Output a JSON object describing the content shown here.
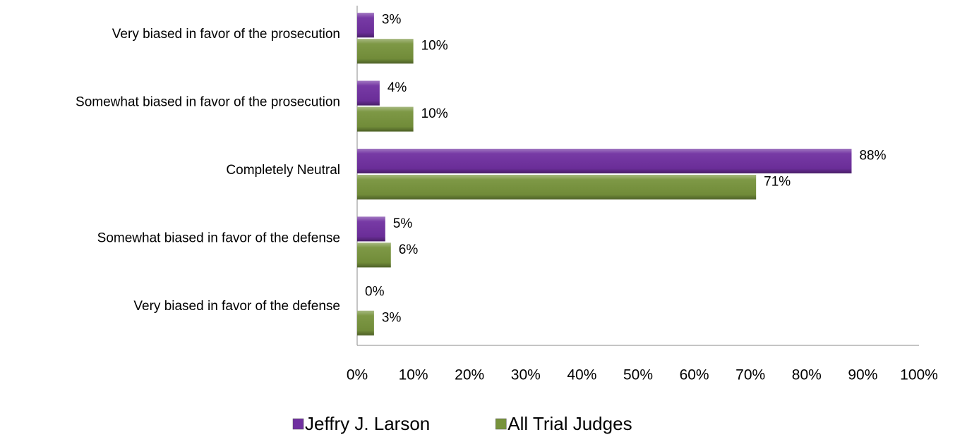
{
  "chart_data": {
    "type": "bar",
    "orientation": "horizontal",
    "categories": [
      "Very biased in favor of the prosecution",
      "Somewhat biased in favor of the prosecution",
      "Completely Neutral",
      "Somewhat biased in favor of the defense",
      "Very biased in favor of the defense"
    ],
    "series": [
      {
        "name": "Jeffry J. Larson",
        "color": "#7030a0",
        "values": [
          3,
          4,
          88,
          5,
          0
        ],
        "value_labels": [
          "3%",
          "4%",
          "88%",
          "5%",
          "0%"
        ]
      },
      {
        "name": "All Trial Judges",
        "color": "#77933c",
        "values": [
          10,
          10,
          71,
          6,
          3
        ],
        "value_labels": [
          "10%",
          "10%",
          "71%",
          "6%",
          "3%"
        ]
      }
    ],
    "xlim": [
      0,
      100
    ],
    "xticks": [
      {
        "value": 0,
        "label": "0%"
      },
      {
        "value": 10,
        "label": "10%"
      },
      {
        "value": 20,
        "label": "20%"
      },
      {
        "value": 30,
        "label": "30%"
      },
      {
        "value": 40,
        "label": "40%"
      },
      {
        "value": 50,
        "label": "50%"
      },
      {
        "value": 60,
        "label": "60%"
      },
      {
        "value": 70,
        "label": "70%"
      },
      {
        "value": 80,
        "label": "80%"
      },
      {
        "value": 90,
        "label": "90%"
      },
      {
        "value": 100,
        "label": "100%"
      }
    ],
    "legend": "bottom"
  }
}
